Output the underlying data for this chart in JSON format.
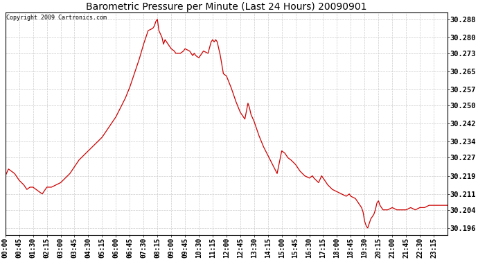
{
  "title": "Barometric Pressure per Minute (Last 24 Hours) 20090901",
  "copyright": "Copyright 2009 Cartronics.com",
  "line_color": "#cc0000",
  "bg_color": "#ffffff",
  "plot_bg_color": "#ffffff",
  "grid_color": "#cccccc",
  "yticks": [
    30.196,
    30.204,
    30.211,
    30.219,
    30.227,
    30.234,
    30.242,
    30.25,
    30.257,
    30.265,
    30.273,
    30.28,
    30.288
  ],
  "ylim": [
    30.193,
    30.291
  ],
  "xtick_labels": [
    "00:00",
    "00:45",
    "01:30",
    "02:15",
    "03:00",
    "03:45",
    "04:30",
    "05:15",
    "06:00",
    "06:45",
    "07:30",
    "08:15",
    "09:00",
    "09:45",
    "10:30",
    "11:15",
    "12:00",
    "12:45",
    "13:30",
    "14:15",
    "15:00",
    "15:45",
    "16:30",
    "17:15",
    "18:00",
    "18:45",
    "19:30",
    "20:15",
    "21:00",
    "21:45",
    "22:30",
    "23:15"
  ],
  "key_values": {
    "00:00": 30.219,
    "00:10": 30.222,
    "00:20": 30.221,
    "00:30": 30.22,
    "00:40": 30.218,
    "00:45": 30.217,
    "01:00": 30.215,
    "01:10": 30.213,
    "01:20": 30.214,
    "01:30": 30.214,
    "01:40": 30.213,
    "01:50": 30.212,
    "02:00": 30.211,
    "02:10": 30.213,
    "02:15": 30.214,
    "02:30": 30.214,
    "02:45": 30.215,
    "03:00": 30.216,
    "03:15": 30.218,
    "03:30": 30.22,
    "03:45": 30.223,
    "04:00": 30.226,
    "04:15": 30.228,
    "04:30": 30.23,
    "04:45": 30.232,
    "05:00": 30.234,
    "05:15": 30.236,
    "05:30": 30.239,
    "05:45": 30.242,
    "06:00": 30.245,
    "06:15": 30.249,
    "06:30": 30.253,
    "06:45": 30.258,
    "07:00": 30.264,
    "07:15": 30.27,
    "07:30": 30.277,
    "07:45": 30.283,
    "08:00": 30.284,
    "08:05": 30.285,
    "08:10": 30.287,
    "08:15": 30.288,
    "08:20": 30.283,
    "08:30": 30.28,
    "08:35": 30.277,
    "08:40": 30.279,
    "08:45": 30.278,
    "09:00": 30.275,
    "09:10": 30.274,
    "09:15": 30.273,
    "09:20": 30.273,
    "09:30": 30.273,
    "09:40": 30.274,
    "09:45": 30.275,
    "10:00": 30.274,
    "10:10": 30.272,
    "10:15": 30.273,
    "10:20": 30.272,
    "10:30": 30.271,
    "10:35": 30.272,
    "10:45": 30.274,
    "11:00": 30.273,
    "11:10": 30.278,
    "11:15": 30.279,
    "11:20": 30.278,
    "11:25": 30.279,
    "11:30": 30.278,
    "11:40": 30.272,
    "11:45": 30.268,
    "11:50": 30.264,
    "12:00": 30.263,
    "12:15": 30.258,
    "12:30": 30.252,
    "12:45": 30.247,
    "13:00": 30.244,
    "13:10": 30.251,
    "13:15": 30.249,
    "13:20": 30.246,
    "13:30": 30.243,
    "13:40": 30.239,
    "13:45": 30.237,
    "14:00": 30.232,
    "14:15": 30.228,
    "14:30": 30.224,
    "14:45": 30.22,
    "15:00": 30.23,
    "15:10": 30.229,
    "15:15": 30.228,
    "15:20": 30.227,
    "15:30": 30.226,
    "15:45": 30.224,
    "16:00": 30.221,
    "16:15": 30.219,
    "16:30": 30.218,
    "16:40": 30.219,
    "16:45": 30.218,
    "17:00": 30.216,
    "17:10": 30.219,
    "17:15": 30.218,
    "17:30": 30.215,
    "17:45": 30.213,
    "18:00": 30.212,
    "18:15": 30.211,
    "18:30": 30.21,
    "18:40": 30.211,
    "18:45": 30.21,
    "19:00": 30.209,
    "19:05": 30.208,
    "19:10": 30.207,
    "19:15": 30.206,
    "19:20": 30.205,
    "19:25": 30.203,
    "19:30": 30.199,
    "19:35": 30.197,
    "19:40": 30.196,
    "19:45": 30.198,
    "19:50": 30.2,
    "20:00": 30.202,
    "20:05": 30.204,
    "20:10": 30.207,
    "20:15": 30.208,
    "20:20": 30.206,
    "20:25": 30.205,
    "20:30": 30.204,
    "20:45": 30.204,
    "21:00": 30.205,
    "21:15": 30.204,
    "21:30": 30.204,
    "21:45": 30.204,
    "22:00": 30.205,
    "22:15": 30.204,
    "22:30": 30.205,
    "22:45": 30.205,
    "23:00": 30.206,
    "23:15": 30.206
  }
}
